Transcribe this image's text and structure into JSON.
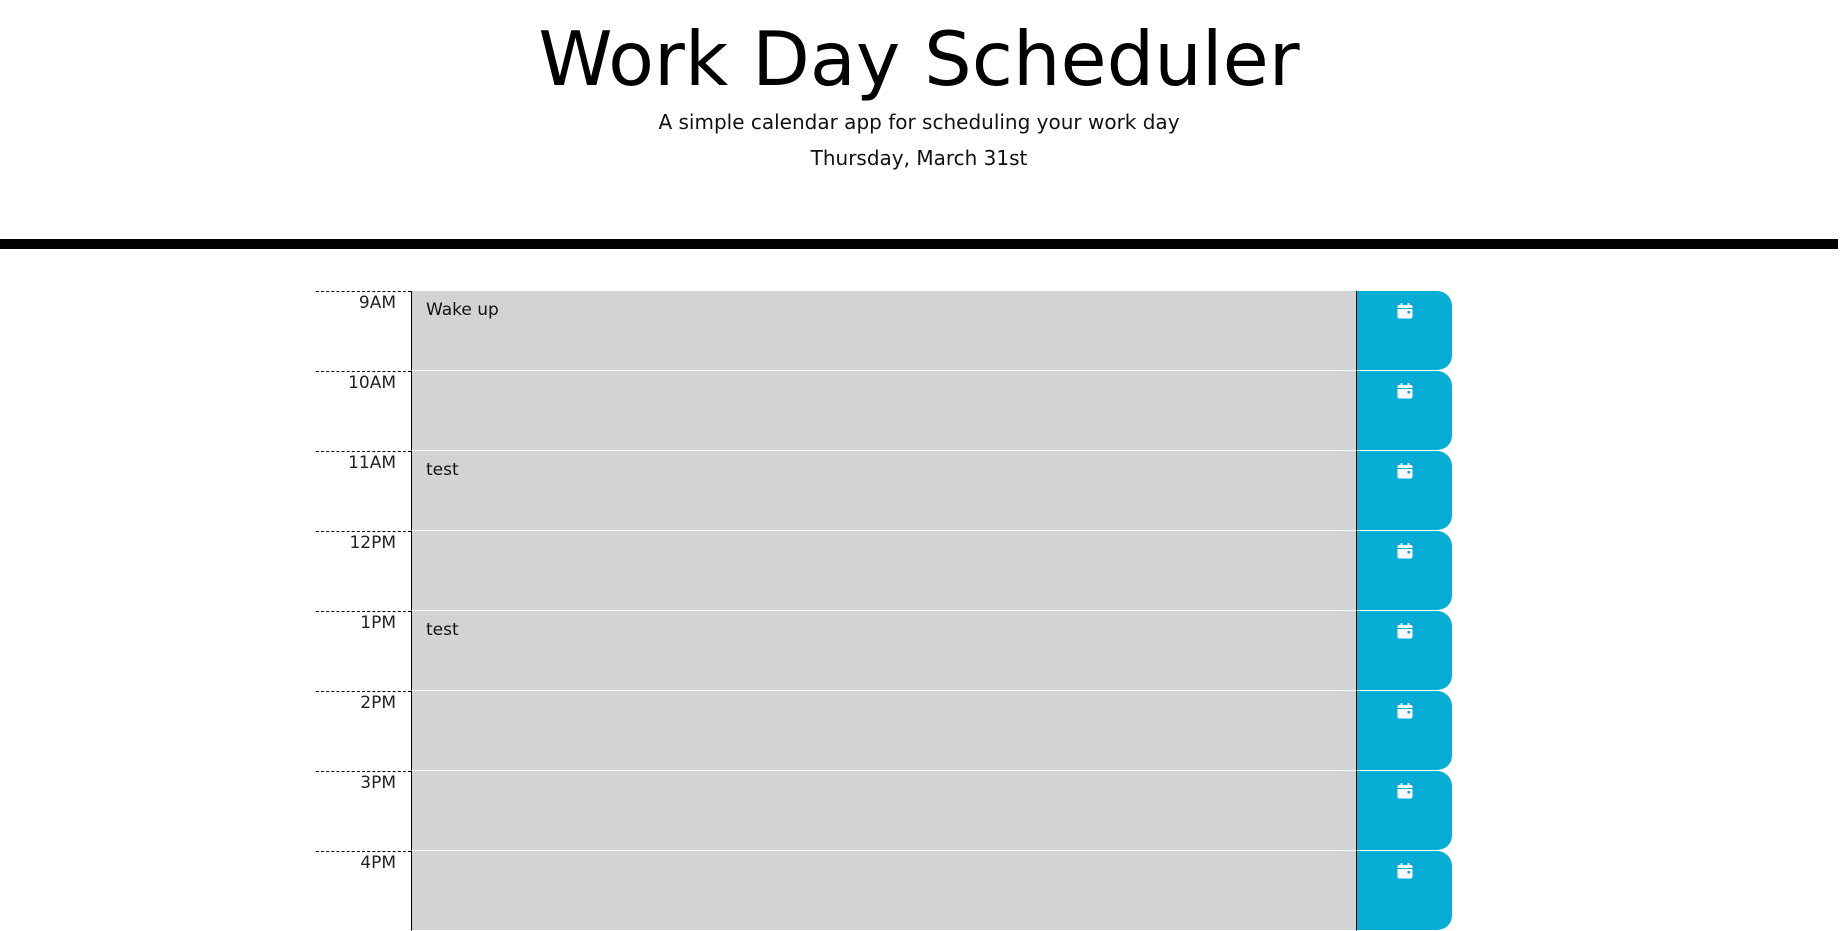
{
  "header": {
    "title": "Work Day Scheduler",
    "subtitle": "A simple calendar app for scheduling your work day",
    "current_day": "Thursday, March 31st"
  },
  "colors": {
    "save_button": "#06aed5",
    "past_block": "#d3d3d3",
    "divider": "#000000"
  },
  "blocks": [
    {
      "hour": "9AM",
      "text": "Wake up",
      "icon": "calendar-icon"
    },
    {
      "hour": "10AM",
      "text": "",
      "icon": "calendar-icon"
    },
    {
      "hour": "11AM",
      "text": "test",
      "icon": "calendar-icon"
    },
    {
      "hour": "12PM",
      "text": "",
      "icon": "calendar-icon"
    },
    {
      "hour": "1PM",
      "text": "test",
      "icon": "calendar-icon"
    },
    {
      "hour": "2PM",
      "text": "",
      "icon": "calendar-icon"
    },
    {
      "hour": "3PM",
      "text": "",
      "icon": "calendar-icon"
    },
    {
      "hour": "4PM",
      "text": "",
      "icon": "calendar-icon"
    }
  ]
}
